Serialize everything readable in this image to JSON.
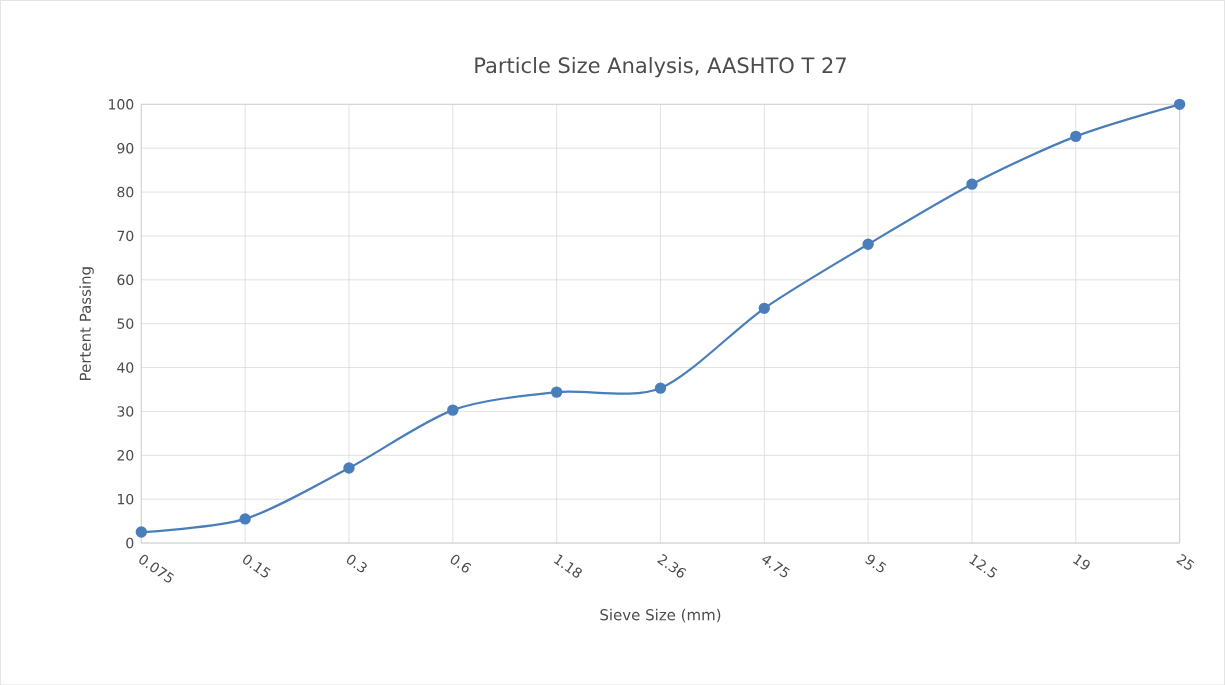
{
  "chart_data": {
    "type": "line",
    "title": "Particle Size Analysis, AASHTO T 27",
    "xlabel": "Sieve Size (mm)",
    "ylabel": "Pertent Passing",
    "categories": [
      "0.075",
      "0.15",
      "0.3",
      "0.6",
      "1.18",
      "2.36",
      "4.75",
      "9.5",
      "12.5",
      "19",
      "25"
    ],
    "series": [
      {
        "color": "#4a7ebb",
        "values": [
          2.5,
          5.5,
          17.1,
          30.3,
          34.4,
          35.3,
          53.5,
          68.1,
          81.8,
          92.7,
          100
        ]
      }
    ],
    "ylim": [
      0,
      100
    ],
    "yticks": [
      0,
      10,
      20,
      30,
      40,
      50,
      60,
      70,
      80,
      90,
      100
    ],
    "grid": true,
    "marker": "circle",
    "line_style": "solid"
  }
}
